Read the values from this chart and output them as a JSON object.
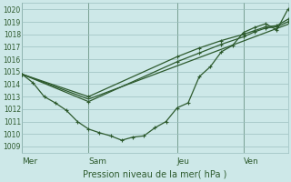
{
  "xlabel": "Pression niveau de la mer( hPa )",
  "background_color": "#cde8e8",
  "grid_color": "#9bbfbf",
  "line_color": "#2d5a2d",
  "ylim": [
    1008.5,
    1020.5
  ],
  "yticks": [
    1009,
    1010,
    1011,
    1012,
    1013,
    1014,
    1015,
    1016,
    1017,
    1018,
    1019,
    1020
  ],
  "xlim": [
    0,
    24
  ],
  "day_labels": [
    "Mer",
    "Sam",
    "Jeu",
    "Ven"
  ],
  "day_positions": [
    0,
    6,
    14,
    20
  ],
  "line1_x": [
    0,
    1,
    2,
    3,
    4,
    5,
    6,
    7,
    8,
    9,
    10,
    11,
    12,
    13,
    14,
    15,
    16,
    17,
    18,
    19,
    20,
    21,
    22,
    23,
    24
  ],
  "line1_y": [
    1014.8,
    1014.1,
    1013.0,
    1012.5,
    1011.9,
    1011.0,
    1010.4,
    1010.1,
    1009.85,
    1009.5,
    1009.75,
    1009.85,
    1010.5,
    1011.0,
    1012.1,
    1012.5,
    1014.6,
    1015.4,
    1016.6,
    1017.1,
    1018.15,
    1018.55,
    1018.85,
    1018.35,
    1020.0
  ],
  "line2_x": [
    0,
    6,
    24
  ],
  "line2_y": [
    1014.8,
    1012.8,
    1018.8
  ],
  "line3_x": [
    0,
    6,
    14,
    16,
    18,
    20,
    21,
    22,
    23,
    24
  ],
  "line3_y": [
    1014.8,
    1012.6,
    1015.8,
    1016.5,
    1017.2,
    1017.8,
    1018.2,
    1018.5,
    1018.6,
    1019.0
  ],
  "line4_x": [
    0,
    6,
    14,
    16,
    18,
    20,
    21,
    22,
    23,
    24
  ],
  "line4_y": [
    1014.8,
    1013.0,
    1016.2,
    1016.9,
    1017.5,
    1018.0,
    1018.3,
    1018.6,
    1018.7,
    1019.2
  ]
}
